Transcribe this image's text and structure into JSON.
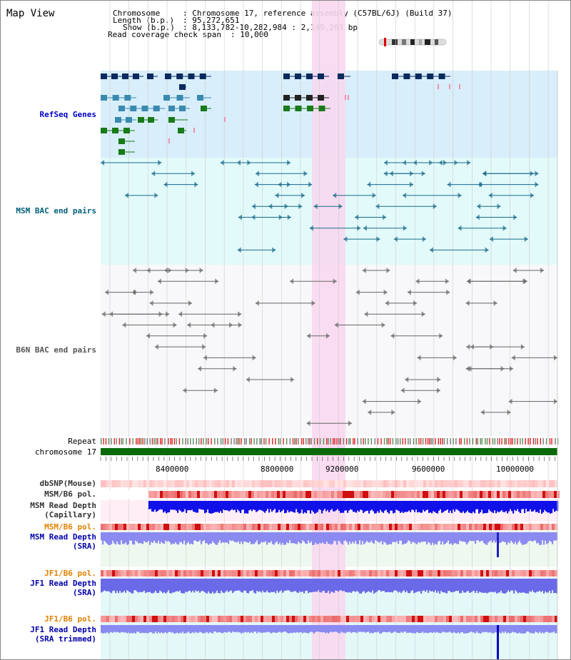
{
  "page": {
    "title": "Map View",
    "info": {
      "chromosome_label": "Chromosome",
      "chromosome_value": "Chromosome 17, reference assembly (C57BL/6J) (Build 37)",
      "length_label": "Length (b.p.)",
      "length_value": "95,272,651",
      "show_label": "Show (b.p.)",
      "show_value": "8,133,782-10,282,984 : 2,149,203 bp",
      "coverage_label": "Read coverage check span",
      "coverage_value": "10,000"
    }
  },
  "tracks": {
    "refseq": {
      "label": "RefSeq Genes",
      "color": "#0000cc"
    },
    "msm_bac": {
      "label": "MSM BAC end pairs",
      "color": "#00607a"
    },
    "b6n_bac": {
      "label": "B6N BAC end pairs",
      "color": "#555555"
    },
    "repeat": {
      "label": "Repeat"
    },
    "chromosome": {
      "label": "chromosome 17",
      "color": "#006400"
    },
    "dbsnp": {
      "label": "dbSNP(Mouse)"
    },
    "msm_b6_pol_1": {
      "label": "MSM/B6 pol."
    },
    "msm_depth_cap": {
      "label": "MSM Read Depth\n(Capillary)"
    },
    "msm_b6_pol_2": {
      "label": "MSM/B6 pol.",
      "color": "#e08000"
    },
    "msm_depth_sra": {
      "label": "MSM Read Depth\n(SRA)",
      "color": "#0000aa"
    },
    "jf1_b6_pol_1": {
      "label": "JF1/B6 pol.",
      "color": "#e08000"
    },
    "jf1_depth_sra": {
      "label": "JF1 Read Depth\n(SRA)",
      "color": "#0000aa"
    },
    "jf1_b6_pol_2": {
      "label": "JF1/B6 pol.",
      "color": "#e08000"
    },
    "jf1_depth_trim": {
      "label": "JF1 Read Depth\n(SRA trimmed)",
      "color": "#0000aa"
    }
  },
  "axis": {
    "ticks": [
      "8400000",
      "8800000",
      "9200000",
      "9600000",
      "10000000"
    ]
  },
  "colors": {
    "highlight": "#f8d8f0",
    "refseq_bg": "#d8eefa",
    "msm_bg": "#e2fafa",
    "b6n_bg": "#f8f8fa",
    "msm_sra_bg": "#eef8ee",
    "jf1_bg": "#e4f8f8"
  }
}
